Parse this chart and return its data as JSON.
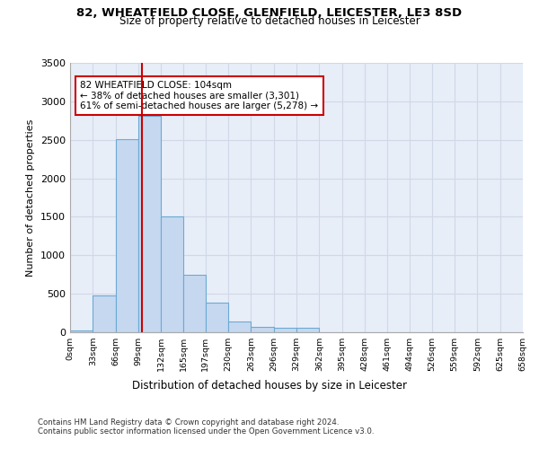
{
  "title_line1": "82, WHEATFIELD CLOSE, GLENFIELD, LEICESTER, LE3 8SD",
  "title_line2": "Size of property relative to detached houses in Leicester",
  "xlabel": "Distribution of detached houses by size in Leicester",
  "ylabel": "Number of detached properties",
  "bar_values": [
    25,
    480,
    2510,
    2810,
    1510,
    745,
    385,
    140,
    75,
    60,
    60,
    0,
    0,
    0,
    0,
    0,
    0,
    0,
    0,
    0
  ],
  "bin_edges": [
    0,
    33,
    66,
    99,
    132,
    165,
    197,
    230,
    263,
    296,
    329,
    362,
    395,
    428,
    461,
    494,
    526,
    559,
    592,
    625,
    658
  ],
  "tick_labels": [
    "0sqm",
    "33sqm",
    "66sqm",
    "99sqm",
    "132sqm",
    "165sqm",
    "197sqm",
    "230sqm",
    "263sqm",
    "296sqm",
    "329sqm",
    "362sqm",
    "395sqm",
    "428sqm",
    "461sqm",
    "494sqm",
    "526sqm",
    "559sqm",
    "592sqm",
    "625sqm",
    "658sqm"
  ],
  "bar_color": "#C5D8F0",
  "bar_edge_color": "#6AAAD4",
  "property_size": 104,
  "red_line_x": 104,
  "annotation_text": "82 WHEATFIELD CLOSE: 104sqm\n← 38% of detached houses are smaller (3,301)\n61% of semi-detached houses are larger (5,278) →",
  "annotation_box_color": "#ffffff",
  "annotation_border_color": "#cc0000",
  "red_line_color": "#cc0000",
  "grid_color": "#d0d8e8",
  "background_color": "#E8EEF8",
  "ylim": [
    0,
    3500
  ],
  "yticks": [
    0,
    500,
    1000,
    1500,
    2000,
    2500,
    3000,
    3500
  ],
  "footer_line1": "Contains HM Land Registry data © Crown copyright and database right 2024.",
  "footer_line2": "Contains public sector information licensed under the Open Government Licence v3.0."
}
